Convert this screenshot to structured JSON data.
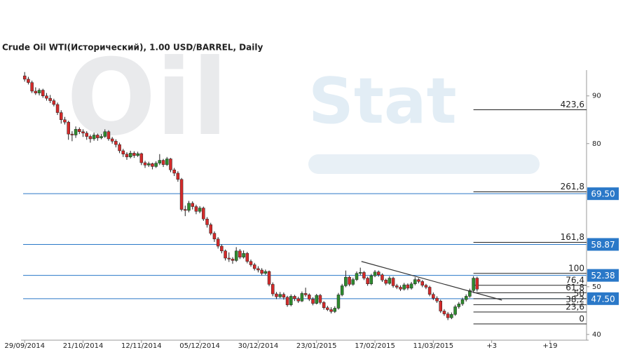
{
  "chart_data": {
    "type": "candlestick",
    "title": "Crude Oil WTI(Исторический), 1.00 USD/BARREL, Daily",
    "watermark": [
      "Oil",
      "Stat"
    ],
    "up_color": "#2e8b2e",
    "down_color": "#d42a2a",
    "xlim": [
      -1,
      154
    ],
    "ylim": [
      38.8,
      95.4
    ],
    "yticks": [
      40,
      50,
      80,
      90
    ],
    "xticks": [
      {
        "value": 0,
        "label": "29/09/2014"
      },
      {
        "value": 16,
        "label": "21/10/2014"
      },
      {
        "value": 32,
        "label": "12/11/2014"
      },
      {
        "value": 48,
        "label": "05/12/2014"
      },
      {
        "value": 64,
        "label": "30/12/2014"
      },
      {
        "value": 80,
        "label": "23/01/2015"
      },
      {
        "value": 96,
        "label": "17/02/2015"
      },
      {
        "value": 112,
        "label": "11/03/2015"
      },
      {
        "value": 128,
        "label": "+3"
      },
      {
        "value": 144,
        "label": "+19"
      }
    ],
    "price_levels": {
      "color": "#2a78c8",
      "levels": [
        {
          "value": 69.5,
          "label": "69.50"
        },
        {
          "value": 58.87,
          "label": "58.87"
        },
        {
          "value": 52.38,
          "label": "52.38"
        },
        {
          "value": 47.5,
          "label": "47.50"
        }
      ]
    },
    "fibonacci": {
      "start": 123,
      "levels": [
        {
          "value": 87.1,
          "label": "423,6"
        },
        {
          "value": 69.9,
          "label": "261,8"
        },
        {
          "value": 59.3,
          "label": "161,8"
        },
        {
          "value": 52.8,
          "label": "100"
        },
        {
          "value": 50.3,
          "label": "76,4"
        },
        {
          "value": 48.75,
          "label": "61,8"
        },
        {
          "value": 47.5,
          "label": "50"
        },
        {
          "value": 46.25,
          "label": "38,2"
        },
        {
          "value": 44.7,
          "label": "23,6"
        },
        {
          "value": 42.2,
          "label": "0"
        }
      ]
    },
    "trendline": {
      "x": [
        92.3,
        130.8
      ],
      "y": [
        55.3,
        47.2
      ]
    },
    "candles": [
      [
        94.2,
        95.0,
        93.0,
        93.5
      ],
      [
        93.5,
        94.0,
        92.4,
        92.8
      ],
      [
        92.8,
        93.2,
        90.6,
        91.0
      ],
      [
        91.0,
        91.8,
        90.2,
        90.6
      ],
      [
        90.6,
        91.6,
        90.1,
        91.2
      ],
      [
        91.2,
        91.5,
        89.6,
        90.0
      ],
      [
        90.0,
        90.6,
        89.0,
        89.5
      ],
      [
        89.5,
        90.2,
        88.5,
        89.0
      ],
      [
        89.0,
        89.4,
        87.8,
        88.2
      ],
      [
        88.2,
        88.6,
        86.0,
        86.5
      ],
      [
        86.5,
        87.0,
        84.2,
        85.0
      ],
      [
        85.0,
        85.6,
        84.0,
        84.5
      ],
      [
        84.5,
        84.8,
        80.8,
        82.0
      ],
      [
        82.0,
        82.6,
        80.5,
        81.8
      ],
      [
        81.8,
        83.6,
        81.2,
        83.0
      ],
      [
        83.0,
        83.4,
        82.0,
        82.5
      ],
      [
        82.5,
        83.0,
        81.4,
        82.2
      ],
      [
        82.2,
        82.6,
        80.8,
        81.5
      ],
      [
        81.5,
        81.9,
        80.2,
        81.0
      ],
      [
        81.0,
        82.3,
        80.6,
        81.8
      ],
      [
        81.8,
        82.1,
        80.6,
        81.2
      ],
      [
        81.2,
        82.0,
        80.9,
        81.5
      ],
      [
        81.5,
        83.0,
        81.2,
        82.5
      ],
      [
        82.5,
        82.8,
        80.6,
        81.0
      ],
      [
        81.0,
        81.4,
        80.0,
        80.5
      ],
      [
        80.5,
        80.9,
        79.2,
        79.8
      ],
      [
        79.8,
        80.2,
        78.0,
        78.5
      ],
      [
        78.5,
        78.9,
        77.2,
        77.8
      ],
      [
        77.8,
        78.2,
        76.6,
        77.2
      ],
      [
        77.2,
        78.5,
        76.9,
        78.0
      ],
      [
        78.0,
        78.4,
        77.0,
        77.5
      ],
      [
        77.5,
        78.3,
        77.2,
        77.9
      ],
      [
        77.9,
        78.1,
        75.5,
        76.0
      ],
      [
        76.0,
        76.4,
        74.9,
        75.5
      ],
      [
        75.5,
        76.2,
        75.1,
        75.8
      ],
      [
        75.8,
        76.0,
        74.6,
        75.2
      ],
      [
        75.2,
        76.3,
        74.9,
        75.9
      ],
      [
        75.9,
        77.8,
        75.5,
        76.5
      ],
      [
        76.5,
        76.8,
        75.1,
        75.6
      ],
      [
        75.6,
        77.2,
        75.3,
        76.8
      ],
      [
        76.8,
        77.0,
        74.0,
        74.5
      ],
      [
        74.5,
        74.9,
        73.2,
        73.8
      ],
      [
        73.8,
        74.2,
        72.0,
        72.5
      ],
      [
        72.5,
        72.8,
        65.8,
        66.2
      ],
      [
        66.2,
        67.0,
        64.8,
        66.0
      ],
      [
        66.0,
        68.0,
        65.6,
        67.5
      ],
      [
        67.5,
        67.9,
        66.2,
        66.8
      ],
      [
        66.8,
        67.2,
        65.2,
        65.8
      ],
      [
        65.8,
        66.9,
        65.4,
        66.5
      ],
      [
        66.5,
        66.8,
        63.8,
        64.2
      ],
      [
        64.2,
        64.6,
        62.4,
        63.0
      ],
      [
        63.0,
        63.4,
        60.8,
        61.2
      ],
      [
        61.2,
        61.6,
        59.4,
        60.0
      ],
      [
        60.0,
        60.4,
        58.0,
        58.5
      ],
      [
        58.5,
        58.9,
        57.0,
        57.5
      ],
      [
        57.5,
        57.8,
        55.5,
        56.0
      ],
      [
        56.0,
        57.2,
        55.2,
        55.8
      ],
      [
        55.8,
        56.2,
        54.8,
        55.5
      ],
      [
        55.5,
        58.3,
        55.2,
        57.5
      ],
      [
        57.5,
        57.9,
        55.8,
        56.2
      ],
      [
        56.2,
        57.6,
        55.9,
        57.0
      ],
      [
        57.0,
        57.3,
        54.9,
        55.3
      ],
      [
        55.3,
        55.7,
        54.2,
        54.6
      ],
      [
        54.6,
        55.0,
        53.4,
        53.8
      ],
      [
        53.8,
        54.3,
        53.0,
        53.5
      ],
      [
        53.5,
        53.9,
        52.4,
        52.8
      ],
      [
        52.8,
        53.6,
        52.5,
        53.2
      ],
      [
        53.2,
        53.4,
        50.1,
        50.5
      ],
      [
        50.5,
        50.9,
        48.0,
        48.5
      ],
      [
        48.5,
        48.9,
        47.4,
        47.9
      ],
      [
        47.9,
        48.9,
        47.6,
        48.4
      ],
      [
        48.4,
        48.8,
        47.3,
        47.8
      ],
      [
        47.8,
        48.1,
        45.8,
        46.2
      ],
      [
        46.2,
        48.4,
        45.9,
        48.0
      ],
      [
        48.0,
        48.3,
        47.0,
        47.5
      ],
      [
        47.5,
        47.9,
        46.6,
        47.0
      ],
      [
        47.0,
        49.0,
        46.8,
        48.6
      ],
      [
        48.6,
        49.8,
        47.9,
        48.3
      ],
      [
        48.3,
        48.6,
        47.0,
        47.4
      ],
      [
        47.4,
        47.8,
        46.1,
        46.5
      ],
      [
        46.5,
        48.5,
        46.3,
        48.2
      ],
      [
        48.2,
        48.5,
        46.3,
        46.7
      ],
      [
        46.7,
        47.0,
        45.2,
        45.6
      ],
      [
        45.6,
        46.0,
        44.9,
        45.2
      ],
      [
        45.2,
        45.7,
        44.4,
        44.8
      ],
      [
        44.8,
        45.9,
        44.5,
        45.5
      ],
      [
        45.5,
        48.7,
        45.2,
        48.3
      ],
      [
        48.3,
        50.6,
        48.0,
        50.2
      ],
      [
        50.2,
        53.4,
        49.9,
        52.0
      ],
      [
        52.0,
        52.3,
        50.1,
        50.5
      ],
      [
        50.5,
        51.9,
        50.2,
        51.5
      ],
      [
        51.5,
        53.2,
        51.2,
        52.8
      ],
      [
        52.8,
        54.0,
        52.4,
        53.0
      ],
      [
        53.0,
        53.3,
        51.4,
        51.8
      ],
      [
        51.8,
        52.1,
        50.2,
        50.6
      ],
      [
        50.6,
        52.7,
        50.3,
        52.3
      ],
      [
        52.3,
        53.5,
        52.0,
        53.1
      ],
      [
        53.1,
        53.4,
        52.1,
        52.5
      ],
      [
        52.5,
        52.8,
        51.0,
        51.4
      ],
      [
        51.4,
        51.7,
        50.3,
        50.7
      ],
      [
        50.7,
        52.2,
        50.4,
        51.8
      ],
      [
        51.8,
        52.1,
        49.8,
        50.2
      ],
      [
        50.2,
        50.6,
        49.5,
        49.9
      ],
      [
        49.9,
        50.3,
        49.1,
        49.5
      ],
      [
        49.5,
        50.8,
        49.2,
        50.4
      ],
      [
        50.4,
        50.7,
        49.3,
        49.7
      ],
      [
        49.7,
        51.0,
        49.4,
        50.6
      ],
      [
        50.6,
        52.0,
        50.3,
        51.5
      ],
      [
        51.5,
        51.8,
        50.7,
        51.1
      ],
      [
        51.1,
        51.4,
        49.9,
        50.3
      ],
      [
        50.3,
        50.6,
        49.5,
        49.9
      ],
      [
        49.9,
        50.2,
        48.0,
        48.4
      ],
      [
        48.4,
        48.8,
        47.2,
        47.6
      ],
      [
        47.6,
        48.0,
        46.6,
        47.0
      ],
      [
        47.0,
        47.3,
        44.5,
        44.9
      ],
      [
        44.9,
        45.3,
        43.9,
        44.3
      ],
      [
        44.3,
        44.7,
        43.0,
        43.5
      ],
      [
        43.5,
        44.6,
        43.2,
        44.2
      ],
      [
        44.2,
        46.2,
        43.9,
        45.8
      ],
      [
        45.8,
        46.8,
        45.4,
        46.4
      ],
      [
        46.4,
        47.7,
        46.0,
        47.3
      ],
      [
        47.3,
        48.4,
        46.9,
        48.0
      ],
      [
        48.0,
        49.6,
        47.7,
        49.2
      ],
      [
        49.2,
        52.2,
        48.9,
        51.8
      ],
      [
        51.8,
        52.1,
        49.0,
        49.5
      ]
    ]
  }
}
